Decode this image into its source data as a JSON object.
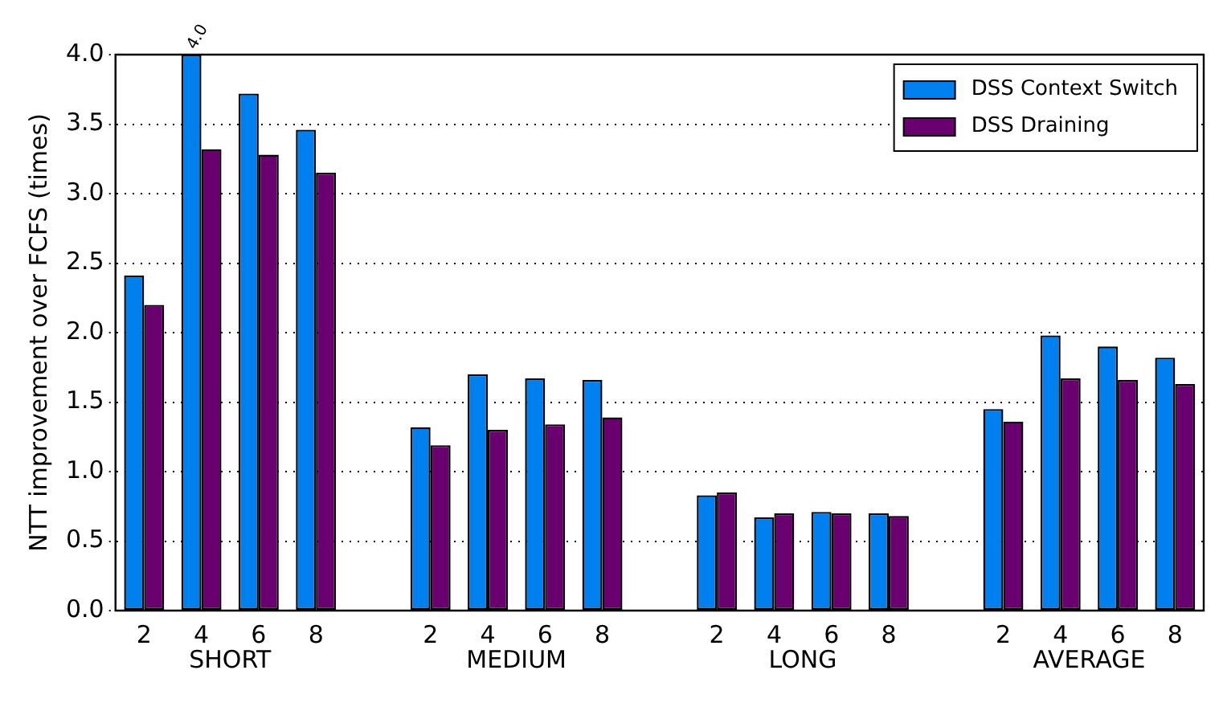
{
  "chart_data": {
    "type": "bar",
    "ylabel": "NTT improvement over FCFS (times)",
    "categories": [
      "2",
      "4",
      "6",
      "8",
      null,
      "2",
      "4",
      "6",
      "8",
      null,
      "2",
      "4",
      "6",
      "8",
      null,
      "2",
      "4",
      "6",
      "8"
    ],
    "series": [
      {
        "name": "DSS Context Switch",
        "color": "#0080ee",
        "values": [
          2.41,
          4.0,
          3.72,
          3.46,
          null,
          1.32,
          1.7,
          1.67,
          1.66,
          null,
          0.83,
          0.67,
          0.71,
          0.7,
          null,
          1.45,
          1.98,
          1.9,
          1.82
        ],
        "value_labels": [
          null,
          "4.0",
          null,
          null,
          null,
          null,
          null,
          null,
          null,
          null,
          null,
          null,
          null,
          null,
          null,
          null,
          null,
          null,
          null
        ]
      },
      {
        "name": "DSS Draining",
        "color": "#6a0070",
        "values": [
          2.2,
          3.32,
          3.28,
          3.15,
          null,
          1.19,
          1.3,
          1.34,
          1.39,
          null,
          0.85,
          0.7,
          0.7,
          0.68,
          null,
          1.36,
          1.67,
          1.66,
          1.63
        ]
      }
    ],
    "annotations": [
      "SHORT",
      "MEDIUM",
      "LONG",
      "AVERAGE"
    ],
    "ylim": [
      0,
      4
    ],
    "yticks": [
      {
        "value": 0,
        "label": "0.0"
      },
      {
        "value": 0.5,
        "label": "0.5"
      },
      {
        "value": 1,
        "label": "1.0"
      },
      {
        "value": 1.5,
        "label": "1.5"
      },
      {
        "value": 2,
        "label": "2.0"
      },
      {
        "value": 2.5,
        "label": "2.5"
      },
      {
        "value": 3,
        "label": "3.0"
      },
      {
        "value": 3.5,
        "label": "3.5"
      },
      {
        "value": 4,
        "label": "4.0"
      }
    ],
    "grid": "y",
    "legend": "top right"
  }
}
